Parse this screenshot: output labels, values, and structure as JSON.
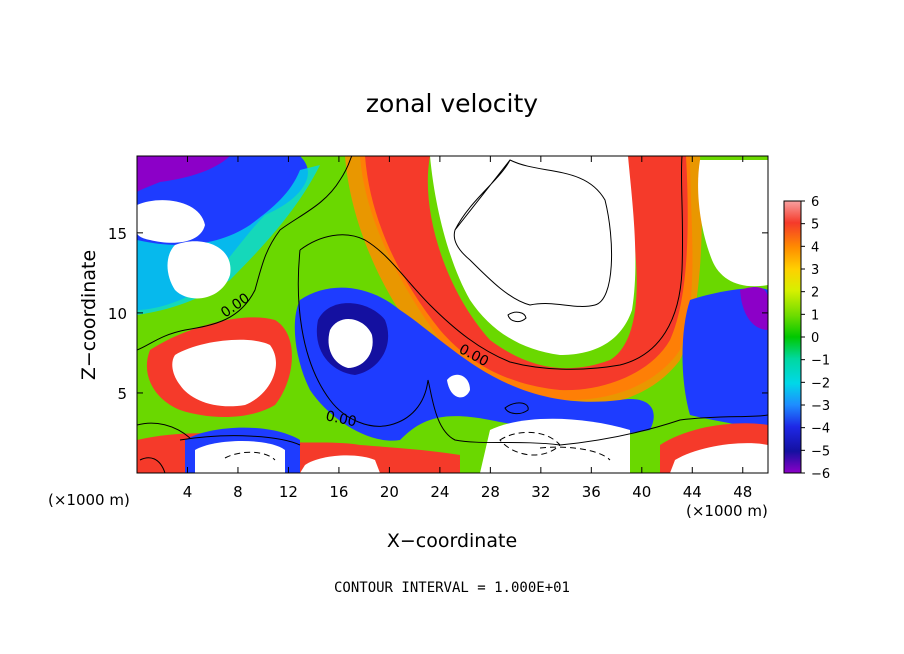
{
  "chart_data": {
    "type": "heatmap",
    "title": "zonal velocity",
    "xlabel": "X−coordinate",
    "ylabel": "Z−coordinate",
    "x_unit_left": "(×1000 m)",
    "x_unit_right": "(×1000 m)",
    "xlim": [
      0,
      50
    ],
    "ylim": [
      0,
      19.8
    ],
    "x_ticks": [
      4,
      8,
      12,
      16,
      20,
      24,
      28,
      32,
      36,
      40,
      44,
      48
    ],
    "y_ticks": [
      5,
      10,
      15
    ],
    "colorbar": {
      "ticks": [
        6,
        5,
        4,
        3,
        2,
        1,
        0,
        -1,
        -2,
        -3,
        -4,
        -5,
        -6
      ],
      "tick_labels": [
        "6",
        "5",
        "4",
        "3",
        "2",
        "1",
        "0",
        "−1",
        "−2",
        "−3",
        "−4",
        "−5",
        "−6"
      ],
      "range": [
        -6,
        6
      ]
    },
    "contour_labels": [
      "0.00",
      "0.00",
      "0.00"
    ],
    "footer": "CONTOUR INTERVAL = 1.000E+01"
  }
}
